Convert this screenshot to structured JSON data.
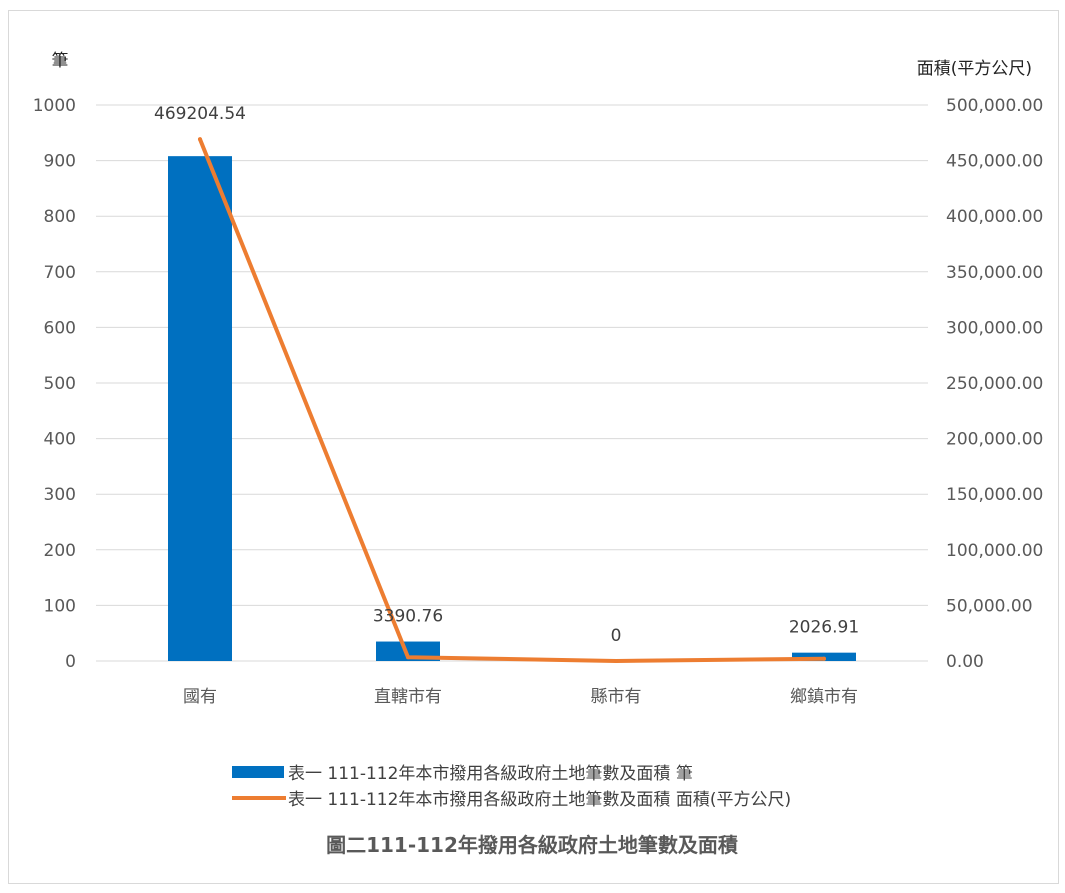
{
  "chart_data": {
    "type": "bar",
    "categories": [
      "國有",
      "直轄市有",
      "縣市有",
      "鄉鎮市有"
    ],
    "series": [
      {
        "name": "表一 111-112年本市撥用各級政府土地筆數及面積 筆",
        "kind": "bar",
        "axis": "left",
        "values": [
          908,
          35,
          0,
          15
        ],
        "color": "#0070C0"
      },
      {
        "name": "表一 111-112年本市撥用各級政府土地筆數及面積 面積(平方公尺)",
        "kind": "line",
        "axis": "right",
        "values": [
          469204.54,
          3390.76,
          0,
          2026.91
        ],
        "color": "#ED7D31"
      }
    ],
    "data_labels": [
      "469204.54",
      "3390.76",
      "0",
      "2026.91"
    ],
    "ylabel_left": "筆",
    "ylabel_right": "面積(平方公尺)",
    "ylim_left": [
      0,
      1000
    ],
    "ylim_right": [
      0,
      500000
    ],
    "yticks_left": [
      "0",
      "100",
      "200",
      "300",
      "400",
      "500",
      "600",
      "700",
      "800",
      "900",
      "1000"
    ],
    "yticks_right": [
      "0.00",
      "50,000.00",
      "100,000.00",
      "150,000.00",
      "200,000.00",
      "250,000.00",
      "300,000.00",
      "350,000.00",
      "400,000.00",
      "450,000.00",
      "500,000.00"
    ],
    "grid": true,
    "legend_position": "bottom",
    "caption": "圖二111-112年撥用各級政府土地筆數及面積"
  }
}
